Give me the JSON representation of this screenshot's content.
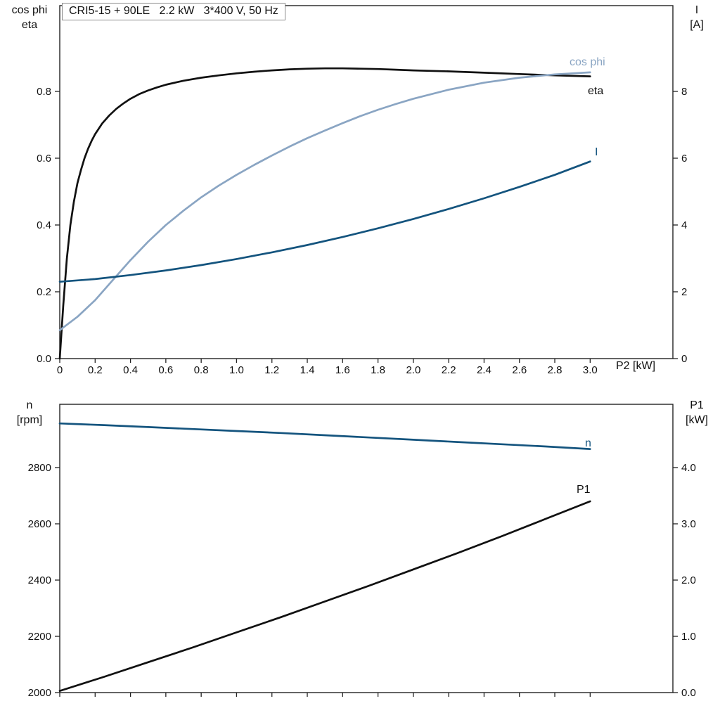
{
  "colors": {
    "eta": "#111111",
    "cos_phi": "#8aa5c3",
    "current": "#14547e",
    "axis": "#222222",
    "text": "#111111",
    "title_border": "#8c8c8c",
    "background": "#ffffff"
  },
  "chart_data": [
    {
      "type": "line",
      "title": "CRI5-15 + 90LE   2.2 kW   3*400 V, 50 Hz",
      "xlabel": "P2 [kW]",
      "x_range": [
        0,
        3.468
      ],
      "show_x_tick_labels": true,
      "x_ticks": [
        {
          "v": 0.0,
          "label": "0"
        },
        {
          "v": 0.2,
          "label": "0.2"
        },
        {
          "v": 0.4,
          "label": "0.4"
        },
        {
          "v": 0.6,
          "label": "0.6"
        },
        {
          "v": 0.8,
          "label": "0.8"
        },
        {
          "v": 1.0,
          "label": "1.0"
        },
        {
          "v": 1.2,
          "label": "1.2"
        },
        {
          "v": 1.4,
          "label": "1.4"
        },
        {
          "v": 1.6,
          "label": "1.6"
        },
        {
          "v": 1.8,
          "label": "1.8"
        },
        {
          "v": 2.0,
          "label": "2.0"
        },
        {
          "v": 2.2,
          "label": "2.2"
        },
        {
          "v": 2.4,
          "label": "2.4"
        },
        {
          "v": 2.6,
          "label": "2.6"
        },
        {
          "v": 2.8,
          "label": "2.8"
        },
        {
          "v": 3.0,
          "label": "3.0"
        }
      ],
      "left_axis": {
        "title_lines": [
          "cos phi",
          "eta"
        ],
        "range": [
          0,
          1.0568
        ],
        "ticks": [
          {
            "v": 0.0,
            "label": "0.0"
          },
          {
            "v": 0.2,
            "label": "0.2"
          },
          {
            "v": 0.4,
            "label": "0.4"
          },
          {
            "v": 0.6,
            "label": "0.6"
          },
          {
            "v": 0.8,
            "label": "0.8"
          }
        ]
      },
      "right_axis": {
        "title_lines": [
          "I",
          "[A]"
        ],
        "range": [
          0,
          10.568
        ],
        "ticks": [
          {
            "v": 0,
            "label": "0"
          },
          {
            "v": 2,
            "label": "2"
          },
          {
            "v": 4,
            "label": "4"
          },
          {
            "v": 6,
            "label": "6"
          },
          {
            "v": 8,
            "label": "8"
          }
        ]
      },
      "series": [
        {
          "name": "eta",
          "label": "eta",
          "axis": "left",
          "color_key": "eta",
          "points": [
            [
              0,
              0
            ],
            [
              0.02,
              0.16
            ],
            [
              0.04,
              0.3
            ],
            [
              0.06,
              0.4
            ],
            [
              0.08,
              0.47
            ],
            [
              0.1,
              0.525
            ],
            [
              0.12,
              0.565
            ],
            [
              0.14,
              0.6
            ],
            [
              0.16,
              0.628
            ],
            [
              0.18,
              0.652
            ],
            [
              0.2,
              0.672
            ],
            [
              0.24,
              0.704
            ],
            [
              0.28,
              0.728
            ],
            [
              0.32,
              0.748
            ],
            [
              0.36,
              0.764
            ],
            [
              0.4,
              0.778
            ],
            [
              0.45,
              0.792
            ],
            [
              0.5,
              0.803
            ],
            [
              0.55,
              0.812
            ],
            [
              0.6,
              0.82
            ],
            [
              0.7,
              0.832
            ],
            [
              0.8,
              0.841
            ],
            [
              0.9,
              0.848
            ],
            [
              1.0,
              0.854
            ],
            [
              1.1,
              0.859
            ],
            [
              1.2,
              0.863
            ],
            [
              1.3,
              0.866
            ],
            [
              1.4,
              0.868
            ],
            [
              1.5,
              0.869
            ],
            [
              1.6,
              0.869
            ],
            [
              1.7,
              0.868
            ],
            [
              1.8,
              0.867
            ],
            [
              1.9,
              0.865
            ],
            [
              2.0,
              0.863
            ],
            [
              2.2,
              0.86
            ],
            [
              2.4,
              0.856
            ],
            [
              2.6,
              0.852
            ],
            [
              2.8,
              0.848
            ],
            [
              3.0,
              0.845
            ]
          ]
        },
        {
          "name": "cos_phi",
          "label": "cos phi",
          "axis": "left",
          "color_key": "cos_phi",
          "points": [
            [
              0,
              0.085
            ],
            [
              0.1,
              0.125
            ],
            [
              0.2,
              0.175
            ],
            [
              0.3,
              0.235
            ],
            [
              0.4,
              0.295
            ],
            [
              0.5,
              0.35
            ],
            [
              0.6,
              0.4
            ],
            [
              0.7,
              0.443
            ],
            [
              0.8,
              0.483
            ],
            [
              0.9,
              0.518
            ],
            [
              1.0,
              0.55
            ],
            [
              1.1,
              0.58
            ],
            [
              1.2,
              0.608
            ],
            [
              1.3,
              0.635
            ],
            [
              1.4,
              0.66
            ],
            [
              1.5,
              0.683
            ],
            [
              1.6,
              0.705
            ],
            [
              1.7,
              0.726
            ],
            [
              1.8,
              0.745
            ],
            [
              1.9,
              0.762
            ],
            [
              2.0,
              0.778
            ],
            [
              2.2,
              0.805
            ],
            [
              2.4,
              0.826
            ],
            [
              2.6,
              0.841
            ],
            [
              2.8,
              0.851
            ],
            [
              3.0,
              0.857
            ]
          ]
        },
        {
          "name": "current",
          "label": "I",
          "axis": "right",
          "color_key": "current",
          "points": [
            [
              0,
              2.3
            ],
            [
              0.2,
              2.38
            ],
            [
              0.4,
              2.5
            ],
            [
              0.6,
              2.64
            ],
            [
              0.8,
              2.8
            ],
            [
              1.0,
              2.98
            ],
            [
              1.2,
              3.18
            ],
            [
              1.4,
              3.4
            ],
            [
              1.6,
              3.64
            ],
            [
              1.8,
              3.9
            ],
            [
              2.0,
              4.18
            ],
            [
              2.2,
              4.48
            ],
            [
              2.4,
              4.8
            ],
            [
              2.6,
              5.14
            ],
            [
              2.8,
              5.5
            ],
            [
              3.0,
              5.9
            ]
          ]
        }
      ]
    },
    {
      "type": "line",
      "title": "",
      "xlabel": "",
      "x_range": [
        0,
        3.468
      ],
      "show_x_tick_labels": false,
      "x_ticks": [
        {
          "v": 0.0,
          "label": ""
        },
        {
          "v": 0.2,
          "label": ""
        },
        {
          "v": 0.4,
          "label": ""
        },
        {
          "v": 0.6,
          "label": ""
        },
        {
          "v": 0.8,
          "label": ""
        },
        {
          "v": 1.0,
          "label": ""
        },
        {
          "v": 1.2,
          "label": ""
        },
        {
          "v": 1.4,
          "label": ""
        },
        {
          "v": 1.6,
          "label": ""
        },
        {
          "v": 1.8,
          "label": ""
        },
        {
          "v": 2.0,
          "label": ""
        },
        {
          "v": 2.2,
          "label": ""
        },
        {
          "v": 2.4,
          "label": ""
        },
        {
          "v": 2.6,
          "label": ""
        },
        {
          "v": 2.8,
          "label": ""
        },
        {
          "v": 3.0,
          "label": ""
        }
      ],
      "left_axis": {
        "title_lines": [
          "n",
          "[rpm]"
        ],
        "range": [
          2000,
          3025
        ],
        "ticks": [
          {
            "v": 2000,
            "label": "2000"
          },
          {
            "v": 2200,
            "label": "2200"
          },
          {
            "v": 2400,
            "label": "2400"
          },
          {
            "v": 2600,
            "label": "2600"
          },
          {
            "v": 2800,
            "label": "2800"
          }
        ]
      },
      "right_axis": {
        "title_lines": [
          "P1",
          "[kW]"
        ],
        "range": [
          0,
          5.125
        ],
        "ticks": [
          {
            "v": 0.0,
            "label": "0.0"
          },
          {
            "v": 1.0,
            "label": "1.0"
          },
          {
            "v": 2.0,
            "label": "2.0"
          },
          {
            "v": 3.0,
            "label": "3.0"
          },
          {
            "v": 4.0,
            "label": "4.0"
          }
        ]
      },
      "series": [
        {
          "name": "speed",
          "label": "n",
          "axis": "left",
          "color_key": "current",
          "points": [
            [
              0,
              2957
            ],
            [
              0.25,
              2951
            ],
            [
              0.5,
              2944
            ],
            [
              0.75,
              2937
            ],
            [
              1.0,
              2930
            ],
            [
              1.25,
              2923
            ],
            [
              1.5,
              2915
            ],
            [
              1.75,
              2907
            ],
            [
              2.0,
              2899
            ],
            [
              2.25,
              2891
            ],
            [
              2.5,
              2883
            ],
            [
              2.75,
              2875
            ],
            [
              3.0,
              2866
            ]
          ]
        },
        {
          "name": "p1",
          "label": "P1",
          "axis": "right",
          "color_key": "eta",
          "points": [
            [
              0,
              0.03
            ],
            [
              0.25,
              0.28
            ],
            [
              0.5,
              0.54
            ],
            [
              0.75,
              0.8
            ],
            [
              1.0,
              1.07
            ],
            [
              1.25,
              1.34
            ],
            [
              1.5,
              1.62
            ],
            [
              1.75,
              1.9
            ],
            [
              2.0,
              2.19
            ],
            [
              2.25,
              2.48
            ],
            [
              2.5,
              2.78
            ],
            [
              2.75,
              3.09
            ],
            [
              3.0,
              3.4
            ]
          ]
        }
      ]
    }
  ]
}
